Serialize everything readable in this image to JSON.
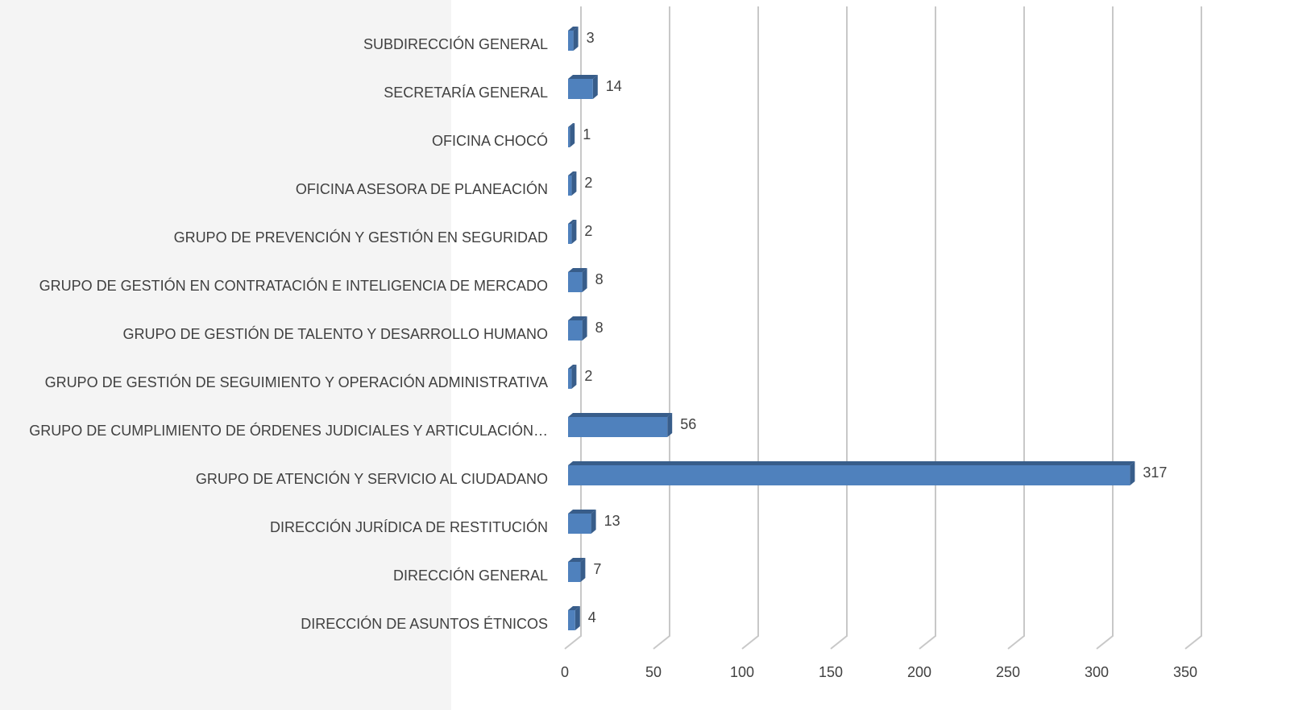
{
  "chart_data": {
    "type": "bar",
    "orientation": "horizontal",
    "three_d": true,
    "categories": [
      "SUBDIRECCIÓN GENERAL",
      "SECRETARÍA GENERAL",
      "OFICINA CHOCÓ",
      "OFICINA ASESORA DE PLANEACIÓN",
      "GRUPO DE PREVENCIÓN Y GESTIÓN EN SEGURIDAD",
      "GRUPO DE GESTIÓN EN CONTRATACIÓN E INTELIGENCIA DE MERCADO",
      "GRUPO DE GESTIÓN DE TALENTO Y DESARROLLO HUMANO",
      "GRUPO DE GESTIÓN DE SEGUIMIENTO Y OPERACIÓN ADMINISTRATIVA",
      "GRUPO DE CUMPLIMIENTO DE ÓRDENES JUDICIALES Y ARTICULACIÓN…",
      "GRUPO DE ATENCIÓN Y SERVICIO AL CIUDADANO",
      "DIRECCIÓN JURÍDICA DE RESTITUCIÓN",
      "DIRECCIÓN GENERAL",
      "DIRECCIÓN DE ASUNTOS ÉTNICOS"
    ],
    "values": [
      3,
      14,
      1,
      2,
      2,
      8,
      8,
      2,
      56,
      317,
      13,
      7,
      4
    ],
    "color": "#4f81bd",
    "side_color": "#385d8a",
    "xlim": [
      0,
      350
    ],
    "xticks": [
      0,
      50,
      100,
      150,
      200,
      250,
      300,
      350
    ],
    "grid": true
  }
}
